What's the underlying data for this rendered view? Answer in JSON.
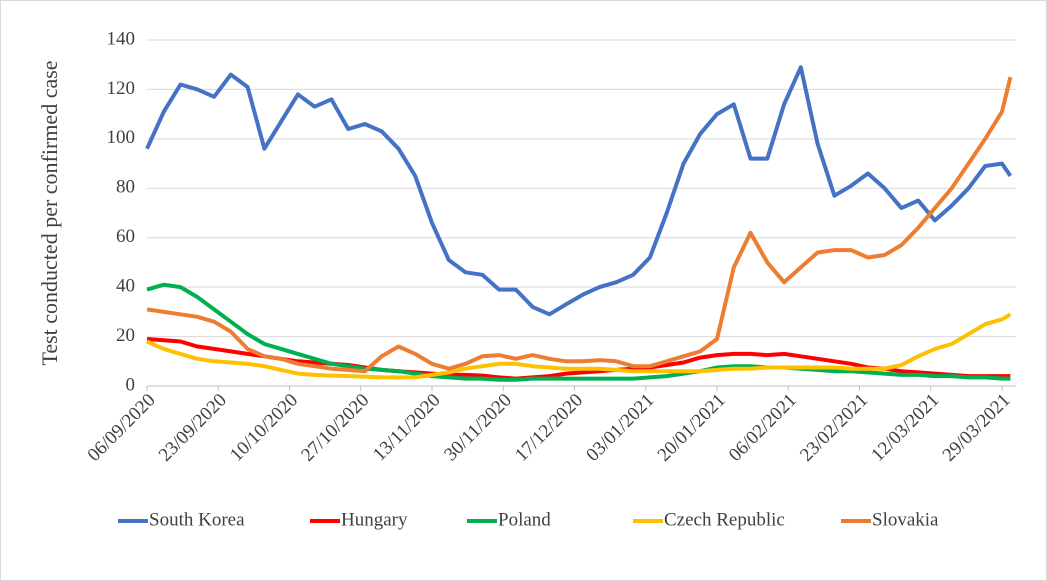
{
  "chart_data": {
    "type": "line",
    "y_label": "Test conducted per confirmed case",
    "x": [
      "06/09/2020",
      "10/09/2020",
      "14/09/2020",
      "18/09/2020",
      "22/09/2020",
      "26/09/2020",
      "30/09/2020",
      "04/10/2020",
      "08/10/2020",
      "12/10/2020",
      "16/10/2020",
      "20/10/2020",
      "24/10/2020",
      "28/10/2020",
      "01/11/2020",
      "05/11/2020",
      "09/11/2020",
      "13/11/2020",
      "17/11/2020",
      "21/11/2020",
      "25/11/2020",
      "29/11/2020",
      "03/12/2020",
      "07/12/2020",
      "11/12/2020",
      "15/12/2020",
      "19/12/2020",
      "23/12/2020",
      "27/12/2020",
      "31/12/2020",
      "04/01/2021",
      "08/01/2021",
      "12/01/2021",
      "16/01/2021",
      "20/01/2021",
      "24/01/2021",
      "28/01/2021",
      "01/02/2021",
      "05/02/2021",
      "09/02/2021",
      "13/02/2021",
      "17/02/2021",
      "21/02/2021",
      "25/02/2021",
      "01/03/2021",
      "05/03/2021",
      "09/03/2021",
      "13/03/2021",
      "17/03/2021",
      "21/03/2021",
      "25/03/2021",
      "29/03/2021",
      "31/03/2021"
    ],
    "series": [
      {
        "name": "South Korea",
        "color": "#4472c4",
        "values": [
          96,
          111,
          122,
          120,
          117,
          126,
          121,
          96,
          107,
          118,
          113,
          116,
          104,
          106,
          103,
          96,
          85,
          66,
          51,
          46,
          45,
          39,
          39,
          32,
          29,
          33,
          37,
          40,
          42,
          45,
          52,
          70,
          90,
          102,
          110,
          114,
          92,
          92,
          114,
          129,
          98,
          77,
          81,
          86,
          80,
          72,
          75,
          67,
          73,
          80,
          89,
          90,
          85
        ]
      },
      {
        "name": "Hungary",
        "color": "#ff0000",
        "values": [
          19,
          18.5,
          18,
          16,
          15,
          14,
          13,
          12,
          11,
          10,
          9.5,
          9,
          8.5,
          7.5,
          6.5,
          6,
          5.5,
          5,
          4.5,
          4.5,
          4.2,
          3.5,
          3,
          3.5,
          4,
          5,
          5.5,
          6,
          6.5,
          7,
          7.5,
          8.5,
          9.5,
          11.5,
          12.5,
          13,
          13,
          12.5,
          13,
          12,
          11,
          10,
          9,
          7.5,
          7,
          6,
          5.5,
          5,
          4.5,
          4,
          4,
          4,
          4
        ]
      },
      {
        "name": "Poland",
        "color": "#00b050",
        "values": [
          39,
          41,
          40,
          36,
          31,
          26,
          21,
          17,
          15,
          13,
          11,
          9,
          8,
          7,
          6.5,
          6,
          5,
          4,
          3.5,
          3,
          3,
          2.5,
          2.5,
          3,
          3,
          3,
          3,
          3,
          3,
          3,
          3.5,
          4,
          5,
          6,
          7.5,
          8,
          8,
          7.5,
          7.5,
          7,
          6.5,
          6,
          6,
          5.5,
          5,
          4.5,
          4.5,
          4,
          4,
          3.5,
          3.5,
          3,
          3
        ]
      },
      {
        "name": "Czech Republic",
        "color": "#ffc000",
        "values": [
          18,
          15,
          13,
          11,
          10,
          9.5,
          9,
          8,
          6.5,
          5,
          4.5,
          4.2,
          4,
          3.8,
          3.5,
          3.5,
          3.5,
          4.5,
          5.5,
          7,
          8,
          9,
          9,
          8,
          7.5,
          7,
          7,
          7,
          6.5,
          6,
          6,
          6,
          6,
          6,
          6.5,
          7,
          7,
          7.5,
          7.5,
          7.5,
          7.5,
          7.5,
          7,
          7,
          7,
          8.5,
          12,
          15,
          17,
          21,
          25,
          27,
          29
        ]
      },
      {
        "name": "Slovakia",
        "color": "#ed7d31",
        "values": [
          31,
          30,
          29,
          28,
          26,
          22,
          15,
          12,
          11,
          9,
          8,
          7,
          6.5,
          6,
          12,
          16,
          13,
          9,
          7,
          9,
          12,
          12.5,
          11,
          12.5,
          11,
          10,
          10,
          10.5,
          10,
          8,
          8,
          10,
          12,
          14,
          19,
          48,
          62,
          50,
          42,
          48,
          54,
          55,
          55,
          52,
          53,
          57,
          64,
          72,
          80,
          90,
          100,
          111,
          125
        ]
      }
    ],
    "xlim": [
      "06/09/2020",
      "29/03/2021"
    ],
    "xticks": [
      "06/09/2020",
      "23/09/2020",
      "10/10/2020",
      "27/10/2020",
      "13/11/2020",
      "30/11/2020",
      "17/12/2020",
      "03/01/2021",
      "20/01/2021",
      "06/02/2021",
      "23/02/2021",
      "12/03/2021",
      "29/03/2021"
    ],
    "ylim": [
      0,
      140
    ],
    "yticks": [
      0,
      20,
      40,
      60,
      80,
      100,
      120,
      140
    ],
    "grid": true,
    "legend": "bottom"
  }
}
